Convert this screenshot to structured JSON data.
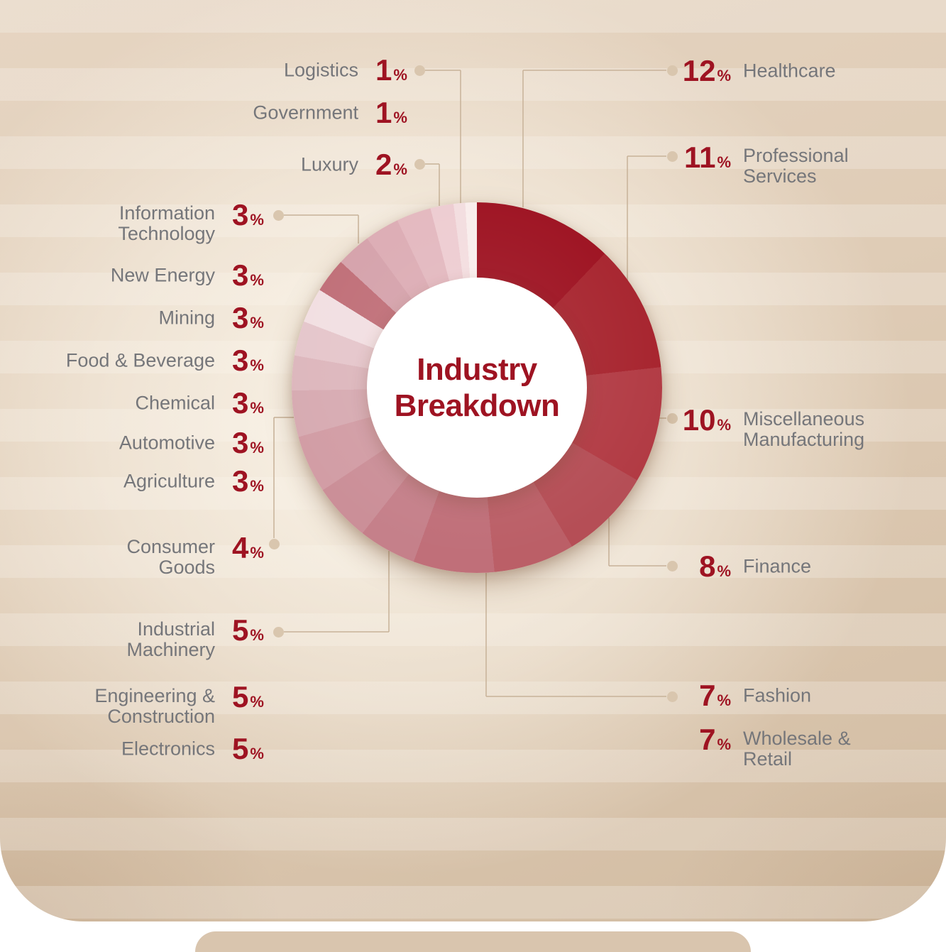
{
  "chart_data": {
    "type": "pie",
    "subtype": "donut",
    "title": "Industry Breakdown",
    "center_label": "Industry\nBreakdown",
    "units": "%",
    "start_angle_deg": 0,
    "direction": "clockwise",
    "values_total": 99,
    "legend_position": "both-sides",
    "series": [
      {
        "label": "Healthcare",
        "display": "Healthcare",
        "value": 12,
        "color": "#9D1120"
      },
      {
        "label": "Professional Services",
        "display": "Professional\nServices",
        "value": 11,
        "color": "#A7242E"
      },
      {
        "label": "Miscellaneous Manufacturing",
        "display": "Miscellaneous\nManufacturing",
        "value": 10,
        "color": "#B23B44"
      },
      {
        "label": "Finance",
        "display": "Finance",
        "value": 8,
        "color": "#B54E56"
      },
      {
        "label": "Fashion",
        "display": "Fashion",
        "value": 7,
        "color": "#BB5F67"
      },
      {
        "label": "Wholesale & Retail",
        "display": "Wholesale &\nRetail",
        "value": 7,
        "color": "#C06F79"
      },
      {
        "label": "Electronics",
        "display": "Electronics",
        "value": 5,
        "color": "#C5808A"
      },
      {
        "label": "Engineering & Construction",
        "display": "Engineering &\nConstruction",
        "value": 5,
        "color": "#CB8F98"
      },
      {
        "label": "Industrial Machinery",
        "display": "Industrial\nMachinery",
        "value": 5,
        "color": "#D29DA5"
      },
      {
        "label": "Consumer Goods",
        "display": "Consumer\nGoods",
        "value": 4,
        "color": "#D7ABB2"
      },
      {
        "label": "Agriculture",
        "display": "Agriculture",
        "value": 3,
        "color": "#DDB7BD"
      },
      {
        "label": "Automotive",
        "display": "Automotive",
        "value": 3,
        "color": "#E5C6CB"
      },
      {
        "label": "Chemical",
        "display": "Chemical",
        "value": 3,
        "color": "#F2DFE2"
      },
      {
        "label": "Food & Beverage",
        "display": "Food & Beverage",
        "value": 3,
        "color": "#C06F78"
      },
      {
        "label": "Mining",
        "display": "Mining",
        "value": 3,
        "color": "#D5A2AB"
      },
      {
        "label": "New Energy",
        "display": "New Energy",
        "value": 3,
        "color": "#DCACB4"
      },
      {
        "label": "Information Technology",
        "display": "Information\nTechnology",
        "value": 3,
        "color": "#E3B8BF"
      },
      {
        "label": "Luxury",
        "display": "Luxury",
        "value": 2,
        "color": "#EDCCD1"
      },
      {
        "label": "Government",
        "display": "Government",
        "value": 1,
        "color": "#F3DDDF"
      },
      {
        "label": "Logistics",
        "display": "Logistics",
        "value": 1,
        "color": "#F9EDEC"
      }
    ]
  },
  "colors": {
    "accent_red": "#9E1322",
    "label_gray": "#75767A",
    "leader_line": "#C7B198",
    "leader_dot": "#D9C6AE",
    "background_light": "#F8F1E6",
    "background_dark": "#CDB7A0"
  }
}
